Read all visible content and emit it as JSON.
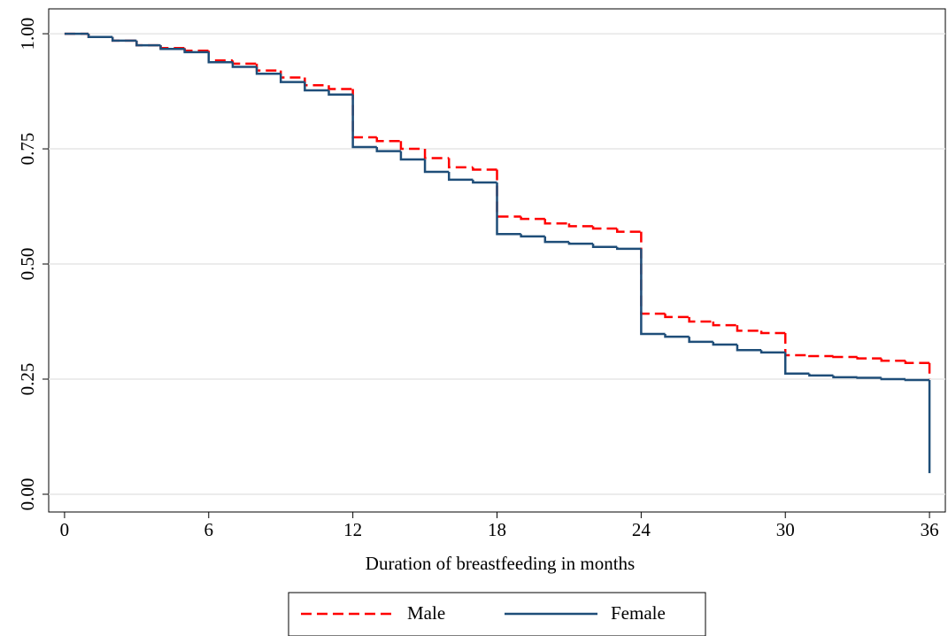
{
  "chart_data": {
    "type": "step",
    "xlabel": "Duration of breastfeeding in months",
    "x": [
      0,
      1,
      2,
      3,
      4,
      5,
      6,
      7,
      8,
      9,
      10,
      11,
      12,
      13,
      14,
      15,
      16,
      17,
      18,
      19,
      20,
      21,
      22,
      23,
      24,
      25,
      26,
      27,
      28,
      29,
      30,
      31,
      32,
      33,
      34,
      35,
      36
    ],
    "series": [
      {
        "name": "Male",
        "color": "#ff0000",
        "dash": true,
        "values": [
          1.0,
          0.993,
          0.985,
          0.975,
          0.969,
          0.963,
          0.942,
          0.935,
          0.92,
          0.905,
          0.888,
          0.88,
          0.775,
          0.767,
          0.75,
          0.73,
          0.71,
          0.705,
          0.603,
          0.598,
          0.588,
          0.582,
          0.577,
          0.57,
          0.392,
          0.385,
          0.375,
          0.367,
          0.355,
          0.35,
          0.302,
          0.3,
          0.298,
          0.295,
          0.29,
          0.285,
          0.25
        ]
      },
      {
        "name": "Female",
        "color": "#1f4e79",
        "dash": false,
        "values": [
          1.0,
          0.993,
          0.985,
          0.975,
          0.967,
          0.96,
          0.938,
          0.928,
          0.913,
          0.895,
          0.877,
          0.868,
          0.754,
          0.745,
          0.727,
          0.7,
          0.683,
          0.677,
          0.565,
          0.56,
          0.548,
          0.544,
          0.537,
          0.533,
          0.348,
          0.342,
          0.331,
          0.325,
          0.313,
          0.308,
          0.262,
          0.258,
          0.254,
          0.253,
          0.25,
          0.248,
          0.046
        ]
      }
    ],
    "xlim": [
      -0.66,
      36.66
    ],
    "xticks": [
      0,
      6,
      12,
      18,
      24,
      30,
      36
    ],
    "ylim": [
      -0.0385,
      1.054
    ],
    "yticks": [
      {
        "value": 0,
        "label": "0.00"
      },
      {
        "value": 0.25,
        "label": "0.25"
      },
      {
        "value": 0.5,
        "label": "0.50"
      },
      {
        "value": 0.75,
        "label": "0.75"
      },
      {
        "value": 1,
        "label": "1.00"
      }
    ],
    "grid": true,
    "legend": "bottom"
  }
}
